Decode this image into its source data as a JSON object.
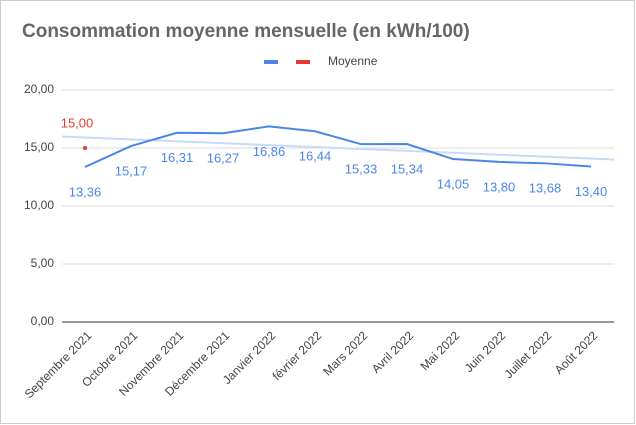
{
  "chart_data": {
    "type": "line",
    "title": "Consommation moyenne mensuelle (en kWh/100)",
    "categories": [
      "Septembre 2021",
      "Octobre 2021",
      "Novembre 2021",
      "Décembre 2021",
      "Janvier 2022",
      "février 2022",
      "Mars 2022",
      "Avril 2022",
      "Mai 2022",
      "Juin 2022",
      "Juillet 2022",
      "Août 2022"
    ],
    "series": [
      {
        "color": "#4a86e8",
        "values": [
          13.36,
          15.17,
          16.31,
          16.27,
          16.86,
          16.44,
          15.33,
          15.34,
          14.05,
          13.8,
          13.68,
          13.4
        ],
        "value_labels": [
          "13,36",
          "15,17",
          "16,31",
          "16,27",
          "16,86",
          "16,44",
          "15,33",
          "15,34",
          "14,05",
          "13,80",
          "13,68",
          "13,40"
        ],
        "trendline": true,
        "trendline_color": "#c9daf8"
      },
      {
        "name": "Moyenne",
        "color": "#e53935",
        "values": [
          15.0,
          null,
          null,
          null,
          null,
          null,
          null,
          null,
          null,
          null,
          null,
          null
        ],
        "value_labels": [
          "15,00",
          null,
          null,
          null,
          null,
          null,
          null,
          null,
          null,
          null,
          null,
          null
        ]
      }
    ],
    "ylim": [
      0,
      20
    ],
    "yticks": [
      {
        "value": 0,
        "label": "0,00"
      },
      {
        "value": 5,
        "label": "5,00"
      },
      {
        "value": 10,
        "label": "10,00"
      },
      {
        "value": 15,
        "label": "15,00"
      },
      {
        "value": 20,
        "label": "20,00"
      }
    ],
    "grid": true,
    "legend": "top"
  }
}
